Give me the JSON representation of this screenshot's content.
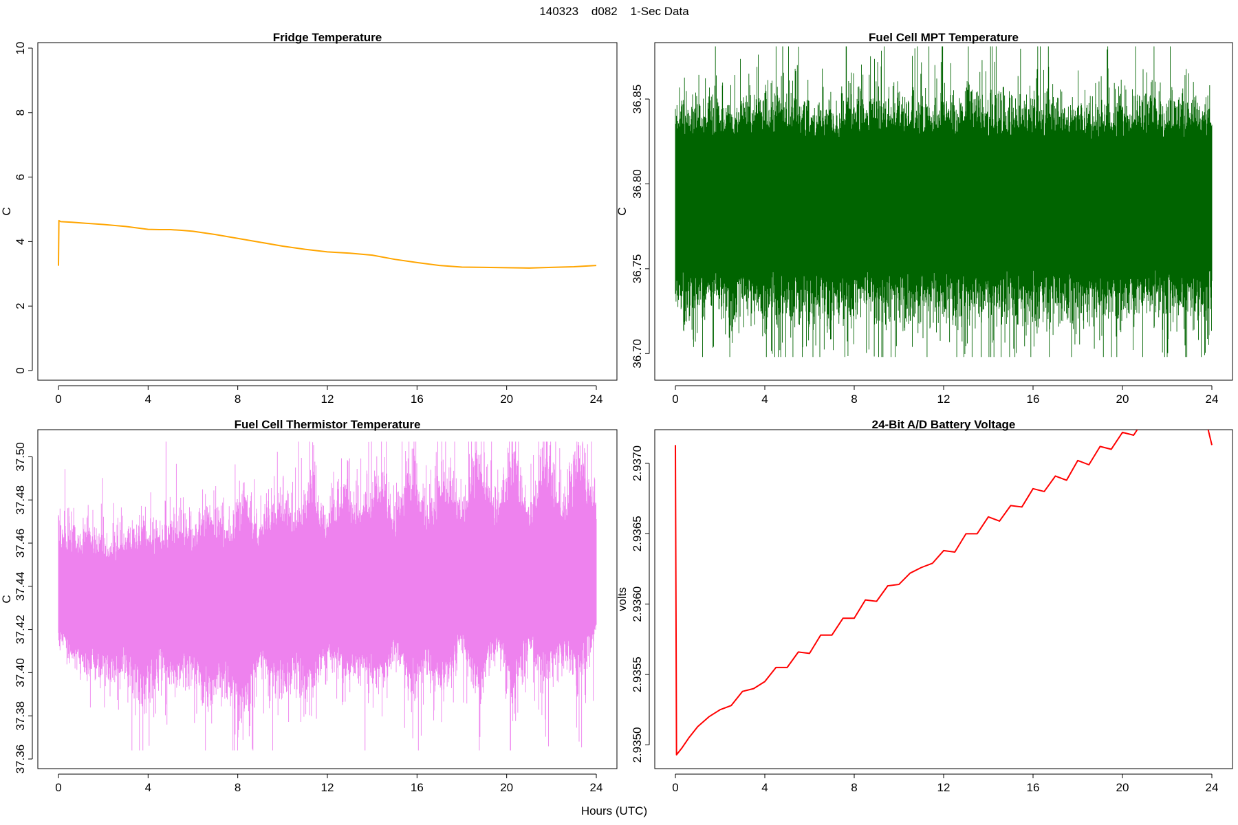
{
  "figure": {
    "title": "140323    d082    1-Sec Data",
    "xlabel": "Hours (UTC)"
  },
  "chart_data": [
    {
      "type": "line",
      "title": "Fridge Temperature",
      "ylabel": "C",
      "color": "#FFA500",
      "xlim": [
        0,
        24
      ],
      "ylim": [
        0,
        10
      ],
      "xticks": [
        "0",
        "4",
        "8",
        "12",
        "16",
        "20",
        "24"
      ],
      "yticks": [
        "0",
        "2",
        "4",
        "6",
        "8",
        "10"
      ],
      "series": [
        {
          "x": [
            0,
            0.02,
            0.1,
            0.6,
            1,
            2,
            3,
            4,
            4.5,
            5,
            5.5,
            6,
            7,
            8,
            9,
            10,
            11,
            12,
            13,
            14,
            15,
            16,
            17,
            18,
            19,
            20,
            21,
            22,
            23,
            24
          ],
          "values": [
            3.25,
            4.65,
            4.62,
            4.6,
            4.58,
            4.53,
            4.47,
            4.38,
            4.37,
            4.37,
            4.35,
            4.32,
            4.22,
            4.1,
            3.98,
            3.86,
            3.76,
            3.68,
            3.64,
            3.58,
            3.45,
            3.35,
            3.26,
            3.21,
            3.2,
            3.19,
            3.18,
            3.2,
            3.22,
            3.26
          ]
        }
      ]
    },
    {
      "type": "line",
      "title": "Fuel Cell MPT Temperature",
      "ylabel": "C",
      "color": "#006400",
      "xlim": [
        0,
        24
      ],
      "ylim": [
        36.69,
        36.88
      ],
      "xticks": [
        "0",
        "4",
        "8",
        "12",
        "16",
        "20",
        "24"
      ],
      "yticks": [
        "36.70",
        "36.75",
        "36.80",
        "36.85"
      ],
      "series": [
        {
          "style": "noise band",
          "x": [
            0,
            4,
            8,
            12,
            16,
            20,
            24
          ],
          "center": [
            36.79,
            36.79,
            36.79,
            36.79,
            36.79,
            36.79,
            36.79
          ],
          "band_low": [
            36.745,
            36.745,
            36.745,
            36.745,
            36.745,
            36.745,
            36.745
          ],
          "band_high": [
            36.83,
            36.83,
            36.83,
            36.83,
            36.83,
            36.83,
            36.83
          ],
          "min": 36.698,
          "max": 36.881
        }
      ]
    },
    {
      "type": "line",
      "title": "Fuel Cell Thermistor Temperature",
      "ylabel": "C",
      "color": "#EE82EE",
      "xlim": [
        0,
        24
      ],
      "ylim": [
        37.36,
        37.51
      ],
      "xticks": [
        "0",
        "4",
        "8",
        "12",
        "16",
        "20",
        "24"
      ],
      "yticks": [
        "37.36",
        "37.38",
        "37.40",
        "37.42",
        "37.44",
        "37.46",
        "37.48",
        "37.50"
      ],
      "series": [
        {
          "style": "noise band",
          "x": [
            0,
            0.75,
            1.5,
            2.25,
            3,
            3.75,
            4.5,
            5.25,
            6,
            6.75,
            7.5,
            8.25,
            9,
            9.75,
            10.5,
            11.25,
            12,
            12.75,
            13.5,
            14.25,
            15,
            15.75,
            16.5,
            17.25,
            18,
            18.75,
            19.5,
            20.25,
            21,
            21.75,
            22.5,
            23.25,
            24
          ],
          "center": [
            37.433,
            37.433,
            37.433,
            37.433,
            37.433,
            37.433,
            37.433,
            37.434,
            37.434,
            37.434,
            37.435,
            37.435,
            37.435,
            37.436,
            37.436,
            37.437,
            37.437,
            37.438,
            37.438,
            37.438,
            37.439,
            37.439,
            37.44,
            37.44,
            37.441,
            37.441,
            37.442,
            37.442,
            37.443,
            37.443,
            37.443,
            37.444,
            37.444
          ],
          "band_low": [
            37.42,
            37.412,
            37.41,
            37.408,
            37.41,
            37.4,
            37.412,
            37.405,
            37.41,
            37.4,
            37.405,
            37.395,
            37.412,
            37.405,
            37.41,
            37.405,
            37.415,
            37.41,
            37.41,
            37.405,
            37.418,
            37.405,
            37.412,
            37.405,
            37.42,
            37.405,
            37.418,
            37.405,
            37.42,
            37.41,
            37.418,
            37.41,
            37.425
          ],
          "band_high": [
            37.458,
            37.455,
            37.456,
            37.452,
            37.455,
            37.458,
            37.456,
            37.462,
            37.456,
            37.465,
            37.456,
            37.468,
            37.46,
            37.47,
            37.462,
            37.475,
            37.462,
            37.475,
            37.465,
            37.478,
            37.464,
            37.48,
            37.465,
            37.482,
            37.466,
            37.484,
            37.466,
            37.485,
            37.468,
            37.486,
            37.468,
            37.486,
            37.47
          ],
          "min": 37.364,
          "max": 37.507
        }
      ]
    },
    {
      "type": "line",
      "title": "24-Bit A/D Battery Voltage",
      "ylabel": "volts",
      "color": "#FF0000",
      "xlim": [
        0,
        24
      ],
      "ylim": [
        2.9349,
        2.9372
      ],
      "xticks": [
        "0",
        "4",
        "8",
        "12",
        "16",
        "20",
        "24"
      ],
      "yticks": [
        "2.9350",
        "2.9355",
        "2.9360",
        "2.9365",
        "2.9370"
      ],
      "series": [
        {
          "x": [
            0,
            0.05,
            0.3,
            0.6,
            1,
            1.5,
            2,
            2.5,
            3,
            3.5,
            4,
            4.5,
            5,
            5.5,
            6,
            6.5,
            7,
            7.5,
            8,
            8.5,
            9,
            9.5,
            10,
            10.5,
            11,
            11.5,
            12,
            12.5,
            13,
            13.5,
            14,
            14.5,
            15,
            15.5,
            16,
            16.5,
            17,
            17.5,
            18,
            18.5,
            19,
            19.5,
            20,
            20.5,
            21,
            21.5,
            22,
            22.5,
            23,
            23.5,
            24
          ],
          "values": [
            2.93713,
            2.93493,
            2.93498,
            2.93505,
            2.93513,
            2.9352,
            2.93525,
            2.93528,
            2.93538,
            2.9354,
            2.93545,
            2.93555,
            2.93555,
            2.93566,
            2.93565,
            2.93578,
            2.93578,
            2.9359,
            2.9359,
            2.93603,
            2.93602,
            2.93613,
            2.93614,
            2.93622,
            2.93626,
            2.93629,
            2.93638,
            2.93637,
            2.9365,
            2.9365,
            2.93662,
            2.93659,
            2.9367,
            2.93669,
            2.93682,
            2.9368,
            2.93691,
            2.93688,
            2.93702,
            2.93699,
            2.93712,
            2.9371,
            2.93722,
            2.9372,
            2.93732,
            2.93729,
            2.93741,
            2.9374,
            2.93748,
            2.93746,
            2.93713
          ]
        }
      ]
    }
  ]
}
